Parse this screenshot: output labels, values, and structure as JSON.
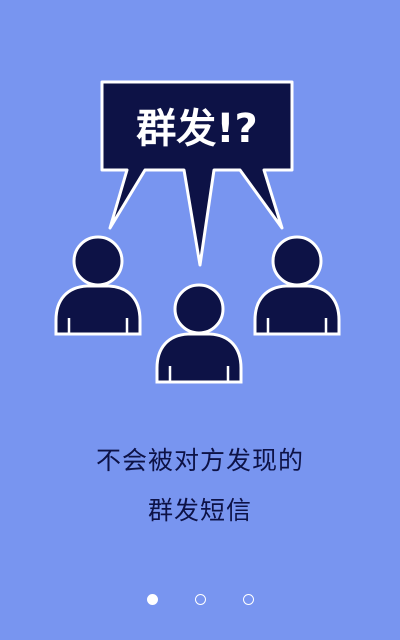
{
  "colors": {
    "background": "#7895f0",
    "figure": "#0d1246",
    "outline": "#ffffff",
    "text": "#0d1246",
    "dot_active": "#ffffff",
    "dot_inactive_border": "#ffffff"
  },
  "illustration": {
    "bubble_text": "群发!?",
    "icons": [
      "speech-bubble-icon",
      "person-icon",
      "person-icon",
      "person-icon"
    ]
  },
  "caption": {
    "line1": "不会被对方发现的",
    "line2": "群发短信"
  },
  "pager": {
    "count": 3,
    "active_index": 0
  }
}
